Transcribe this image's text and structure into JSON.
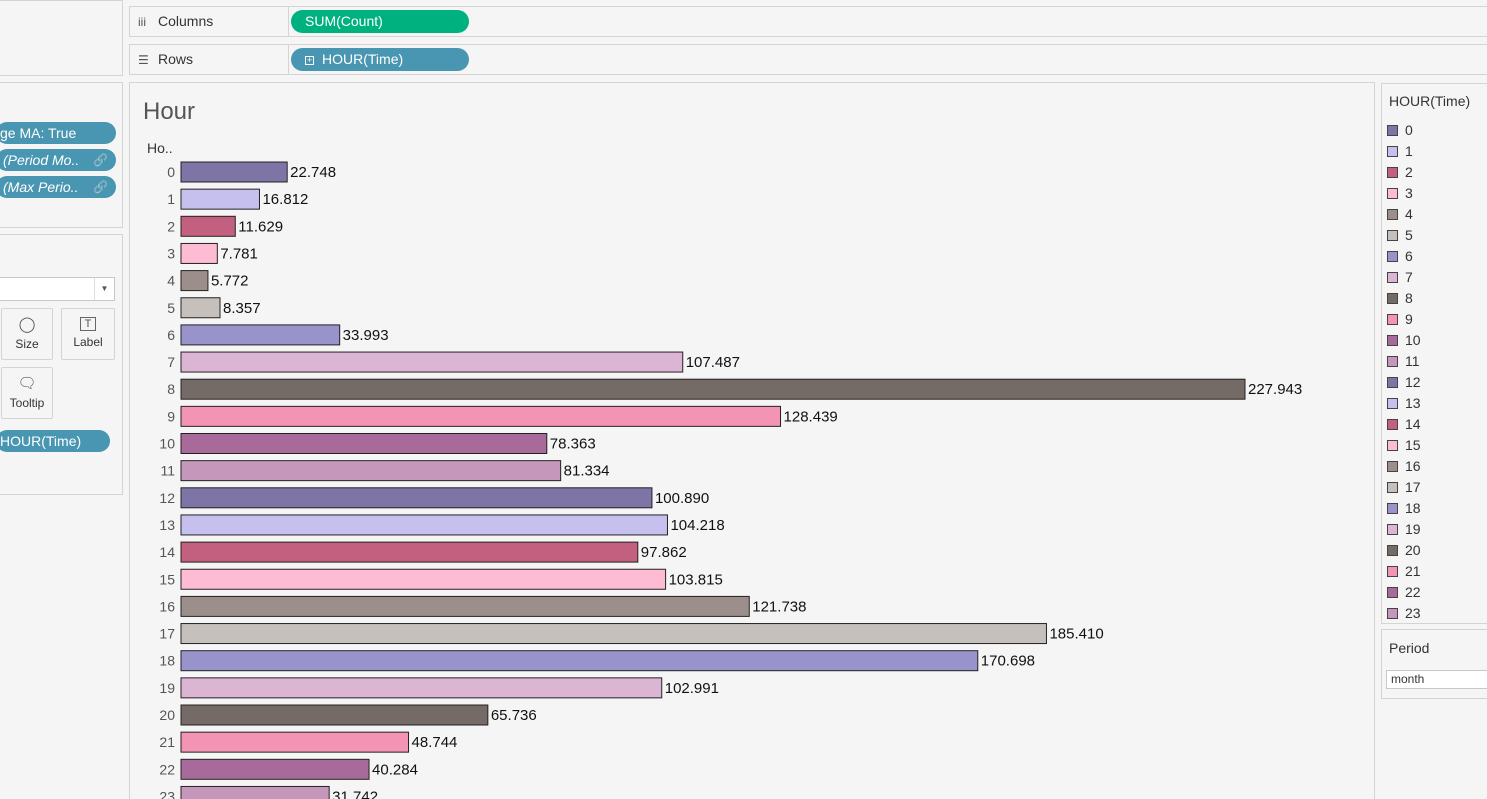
{
  "filters": {
    "pills": [
      {
        "label": "ge MA: True"
      },
      {
        "label": "(Period Mo.."
      },
      {
        "label": "(Max Perio.."
      }
    ]
  },
  "marks": {
    "size_label": "Size",
    "label_label": "Label",
    "tooltip_label": "Tooltip",
    "color_pill": "HOUR(Time)"
  },
  "columns": {
    "label": "Columns",
    "pill": "SUM(Count)"
  },
  "rows": {
    "label": "Rows",
    "pill": "HOUR(Time)"
  },
  "viz": {
    "title": "Hour",
    "axis_header": "Ho.."
  },
  "legend": {
    "title": "HOUR(Time)",
    "items": [
      {
        "label": "0",
        "color": "#7f74a6"
      },
      {
        "label": "1",
        "color": "#c6c0ef"
      },
      {
        "label": "2",
        "color": "#c4607f"
      },
      {
        "label": "3",
        "color": "#fdbcd4"
      },
      {
        "label": "4",
        "color": "#9c8f8b"
      },
      {
        "label": "5",
        "color": "#c6c0bc"
      },
      {
        "label": "6",
        "color": "#9993cc"
      },
      {
        "label": "7",
        "color": "#dcb5d4"
      },
      {
        "label": "8",
        "color": "#746a66"
      },
      {
        "label": "9",
        "color": "#f494b4"
      },
      {
        "label": "10",
        "color": "#a8699b"
      },
      {
        "label": "11",
        "color": "#c497bb"
      },
      {
        "label": "12",
        "color": "#7f74a6"
      },
      {
        "label": "13",
        "color": "#c6c0ef"
      },
      {
        "label": "14",
        "color": "#c4607f"
      },
      {
        "label": "15",
        "color": "#fdbcd4"
      },
      {
        "label": "16",
        "color": "#9c8f8b"
      },
      {
        "label": "17",
        "color": "#c6c0bc"
      },
      {
        "label": "18",
        "color": "#9993cc"
      },
      {
        "label": "19",
        "color": "#dcb5d4"
      },
      {
        "label": "20",
        "color": "#746a66"
      },
      {
        "label": "21",
        "color": "#f494b4"
      },
      {
        "label": "22",
        "color": "#a8699b"
      },
      {
        "label": "23",
        "color": "#c497bb"
      }
    ]
  },
  "parameter": {
    "title": "Period",
    "value": "month"
  },
  "chart_data": {
    "type": "bar",
    "orientation": "horizontal",
    "title": "Hour",
    "categories": [
      "0",
      "1",
      "2",
      "3",
      "4",
      "5",
      "6",
      "7",
      "8",
      "9",
      "10",
      "11",
      "12",
      "13",
      "14",
      "15",
      "16",
      "17",
      "18",
      "19",
      "20",
      "21",
      "22",
      "23"
    ],
    "values": [
      22.748,
      16.812,
      11.629,
      7.781,
      5.772,
      8.357,
      33.993,
      107.487,
      227.943,
      128.439,
      78.363,
      81.334,
      100.89,
      104.218,
      97.862,
      103.815,
      121.738,
      185.41,
      170.698,
      102.991,
      65.736,
      48.744,
      40.284,
      31.742
    ],
    "data_labels": [
      "22.748",
      "16.812",
      "11.629",
      "7.781",
      "5.772",
      "8.357",
      "33.993",
      "107.487",
      "227.943",
      "128.439",
      "78.363",
      "81.334",
      "100.890",
      "104.218",
      "97.862",
      "103.815",
      "121.738",
      "185.410",
      "170.698",
      "102.991",
      "65.736",
      "48.744",
      "40.284",
      "31.742"
    ],
    "colors": [
      "#7f74a6",
      "#c6c0ef",
      "#c4607f",
      "#fdbcd4",
      "#9c8f8b",
      "#c6c0bc",
      "#9993cc",
      "#dcb5d4",
      "#746a66",
      "#f494b4",
      "#a8699b",
      "#c497bb",
      "#7f74a6",
      "#c6c0ef",
      "#c4607f",
      "#fdbcd4",
      "#9c8f8b",
      "#c6c0bc",
      "#9993cc",
      "#dcb5d4",
      "#746a66",
      "#f494b4",
      "#a8699b",
      "#c497bb"
    ],
    "ylabel": "Ho..",
    "xlabel": "",
    "grid": false
  }
}
